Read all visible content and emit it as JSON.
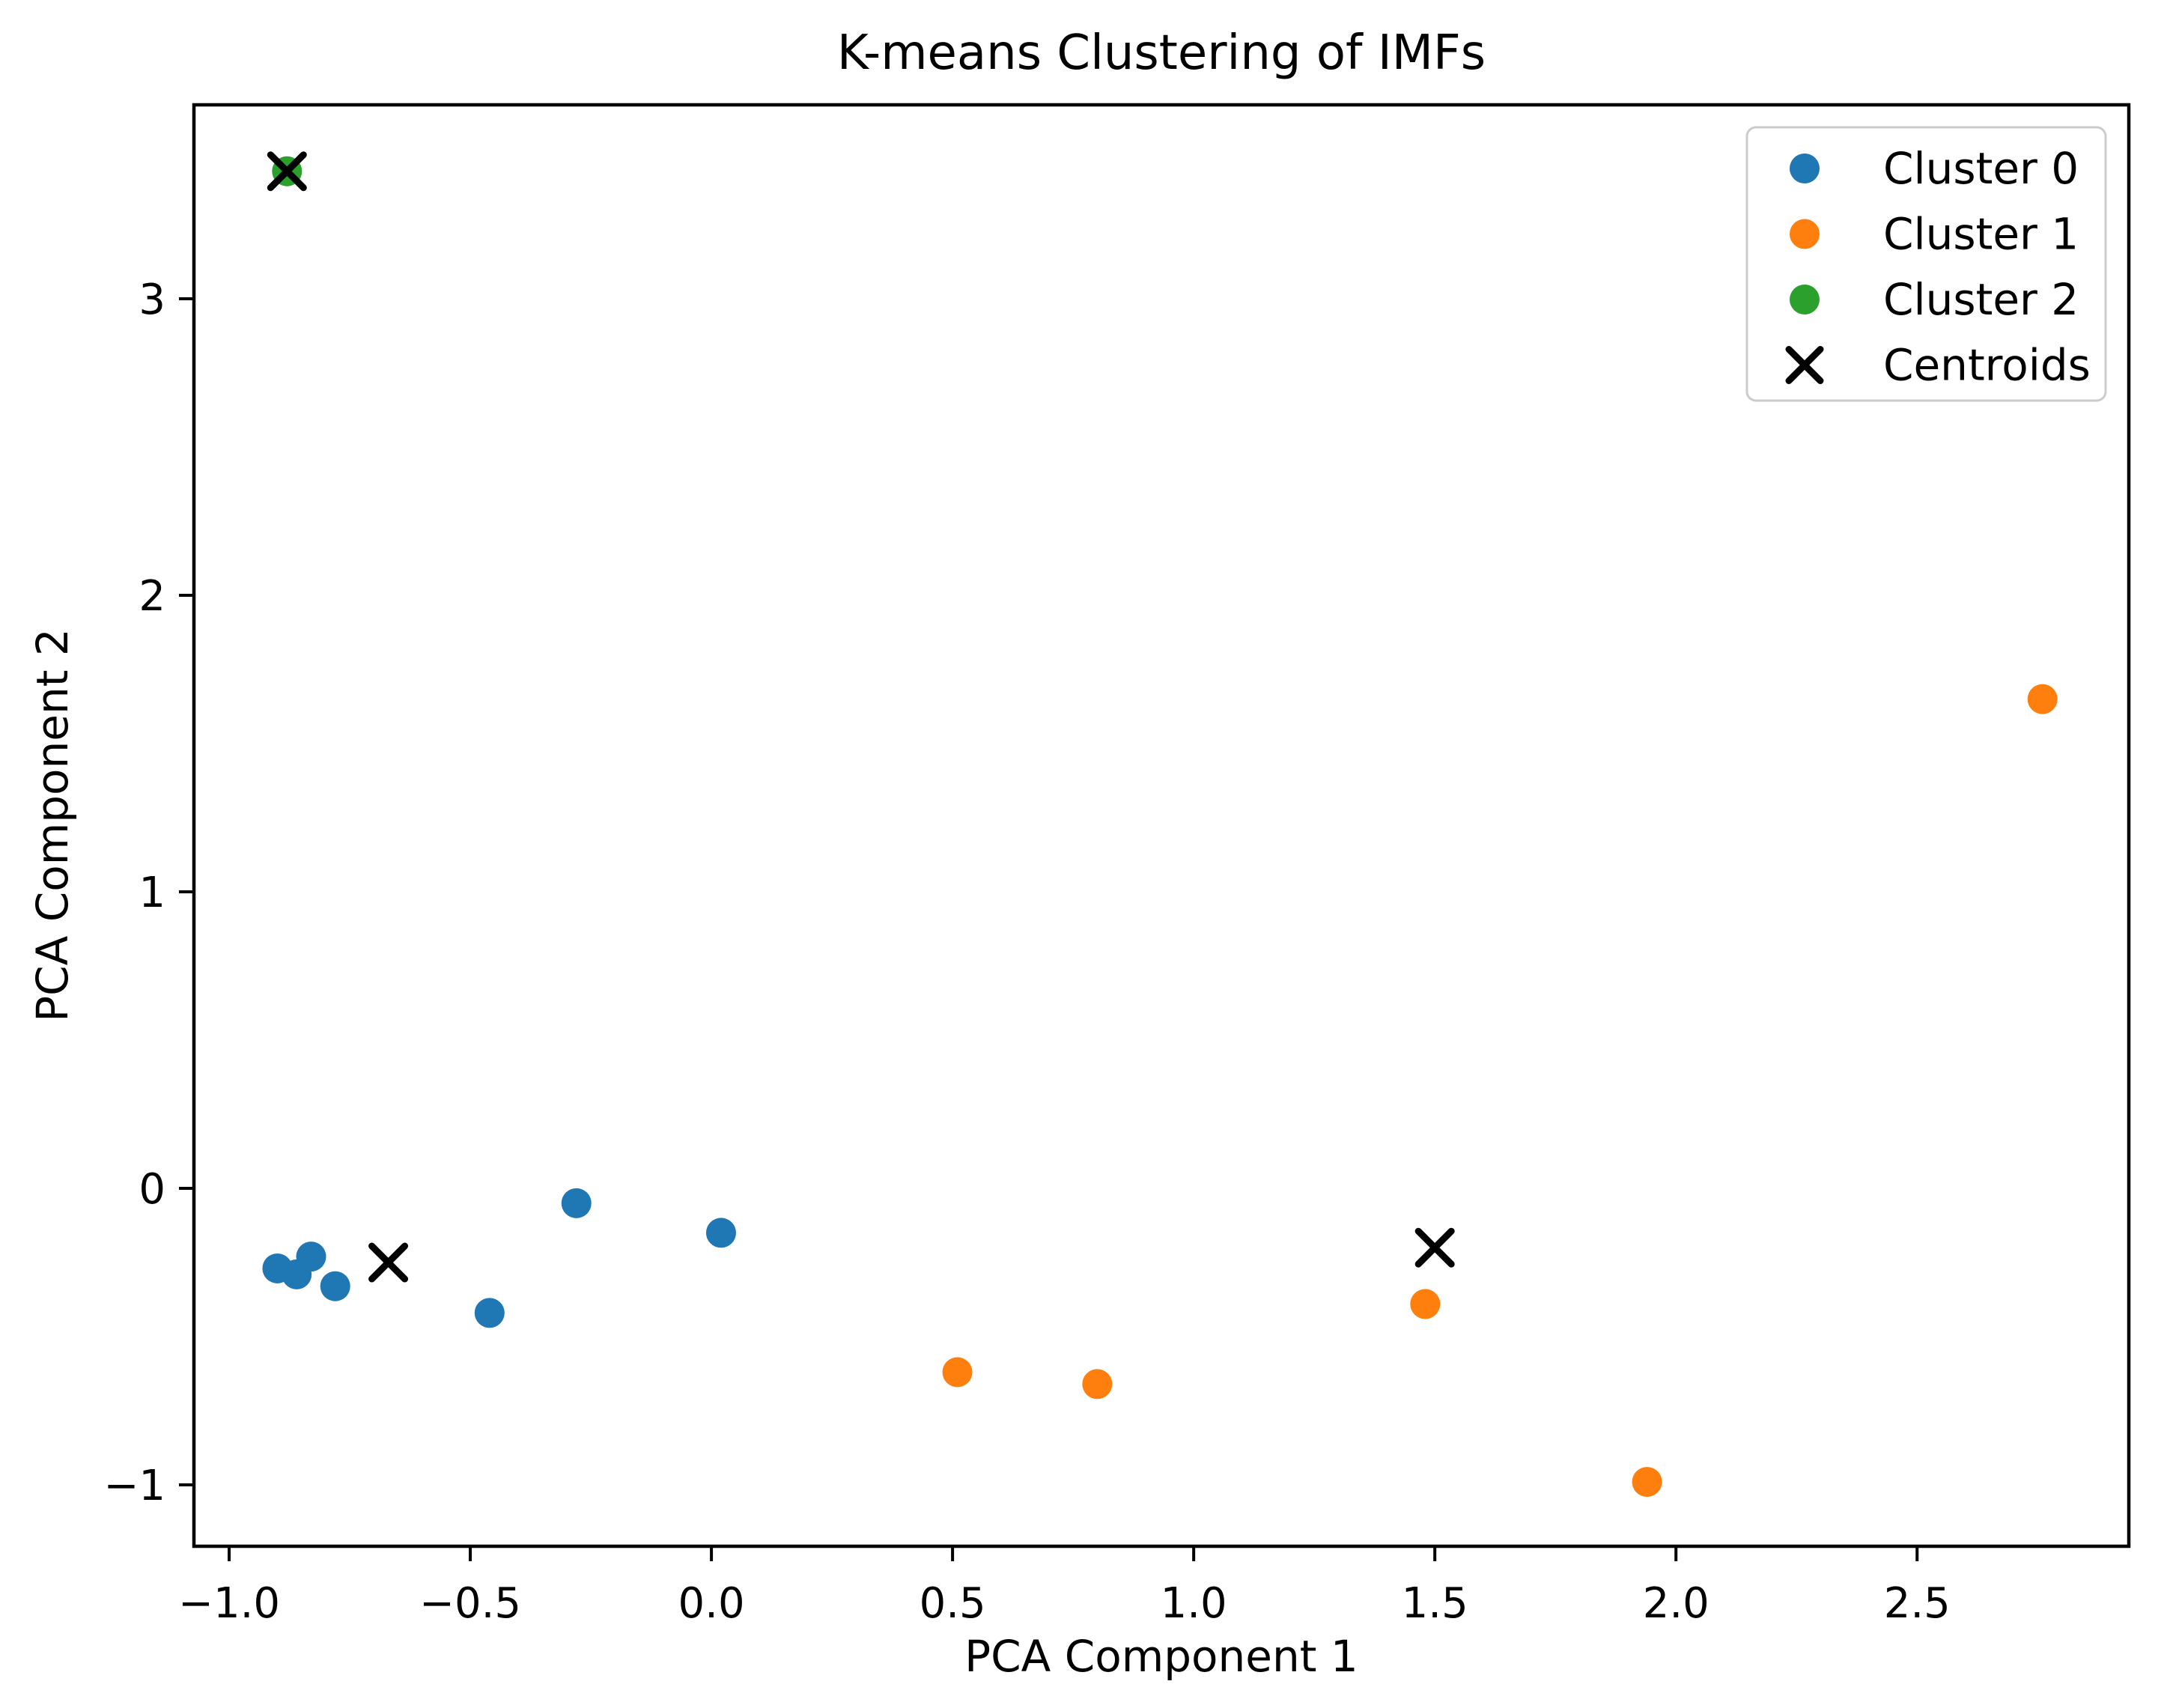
{
  "chart_data": {
    "type": "scatter",
    "title": "K-means Clustering of IMFs",
    "xlabel": "PCA Component 1",
    "ylabel": "PCA Component 2",
    "xlim": [
      -1.073,
      2.939
    ],
    "ylim": [
      -1.207,
      3.654
    ],
    "xticks": [
      -1.0,
      -0.5,
      0.0,
      0.5,
      1.0,
      1.5,
      2.0,
      2.5
    ],
    "yticks": [
      -1,
      0,
      1,
      2,
      3
    ],
    "grid": false,
    "legend_position": "upper right",
    "colors": {
      "cluster0": "#1f77b4",
      "cluster1": "#ff7f0e",
      "cluster2": "#2ca02c",
      "centroids": "#000000",
      "spine": "#000000",
      "legend_border": "#cccccc"
    },
    "series": [
      {
        "name": "Cluster 0",
        "marker": "circle",
        "color": "#1f77b4",
        "points": [
          [
            -0.9,
            -0.27
          ],
          [
            -0.86,
            -0.29
          ],
          [
            -0.83,
            -0.23
          ],
          [
            -0.78,
            -0.33
          ],
          [
            -0.46,
            -0.42
          ],
          [
            -0.28,
            -0.05
          ],
          [
            0.02,
            -0.15
          ]
        ]
      },
      {
        "name": "Cluster 1",
        "marker": "circle",
        "color": "#ff7f0e",
        "points": [
          [
            0.51,
            -0.62
          ],
          [
            0.8,
            -0.66
          ],
          [
            1.48,
            -0.39
          ],
          [
            1.94,
            -0.99
          ],
          [
            2.76,
            1.65
          ]
        ]
      },
      {
        "name": "Cluster 2",
        "marker": "circle",
        "color": "#2ca02c",
        "points": [
          [
            -0.88,
            3.43
          ]
        ]
      },
      {
        "name": "Centroids",
        "marker": "x",
        "color": "#000000",
        "points": [
          [
            -0.88,
            3.43
          ],
          [
            -0.67,
            -0.25
          ],
          [
            1.5,
            -0.2
          ]
        ]
      }
    ]
  }
}
